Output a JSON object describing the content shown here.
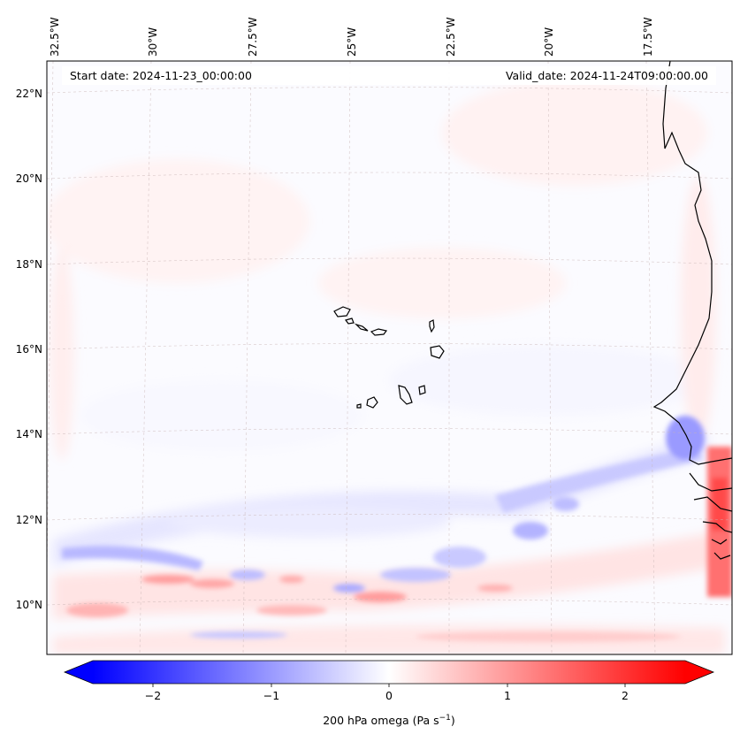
{
  "header": {
    "start_date": "Start date: 2024-11-23_00:00:00",
    "valid_date": "Valid_date: 2024-11-24T09:00:00.00"
  },
  "longitude_labels": [
    "32.5°W",
    "30°W",
    "27.5°W",
    "25°W",
    "22.5°W",
    "20°W",
    "17.5°W"
  ],
  "latitude_labels": [
    "22°N",
    "20°N",
    "18°N",
    "16°N",
    "14°N",
    "12°N",
    "10°N"
  ],
  "colorbar": {
    "ticks": [
      "−2",
      "−1",
      "0",
      "1",
      "2"
    ],
    "label_main": "200 hPa omega (Pa s",
    "label_exp": "−1",
    "label_close": ")",
    "min_color": "#0000ff",
    "mid_color": "#ffffff",
    "max_color": "#ff0000"
  },
  "colors": {
    "coastline": "#000000",
    "gridline": "#c8b4b4",
    "field_background": "#fbfbff"
  }
}
